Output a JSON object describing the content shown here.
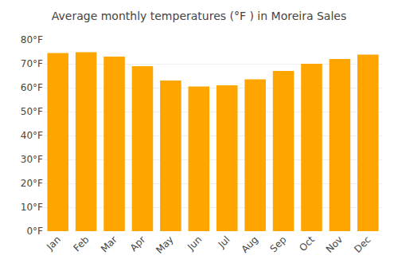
{
  "chart_data": {
    "type": "bar",
    "title": "Average monthly temperatures (°F ) in Moreira Sales",
    "categories": [
      "Jan",
      "Feb",
      "Mar",
      "Apr",
      "May",
      "Jun",
      "Jul",
      "Aug",
      "Sep",
      "Oct",
      "Nov",
      "Dec"
    ],
    "values": [
      74.5,
      74.8,
      73.0,
      69.0,
      63.0,
      60.5,
      61.0,
      63.5,
      67.0,
      70.0,
      72.0,
      73.8
    ],
    "color": "#FFA500",
    "ylim": [
      0,
      80
    ],
    "yticks": [
      {
        "value": 0,
        "label": "0°F"
      },
      {
        "value": 10,
        "label": "10°F"
      },
      {
        "value": 20,
        "label": "20°F"
      },
      {
        "value": 30,
        "label": "30°F"
      },
      {
        "value": 40,
        "label": "40°F"
      },
      {
        "value": 50,
        "label": "50°F"
      },
      {
        "value": 60,
        "label": "60°F"
      },
      {
        "value": 70,
        "label": "70°F"
      },
      {
        "value": 80,
        "label": "80°F"
      }
    ],
    "grid": true
  }
}
